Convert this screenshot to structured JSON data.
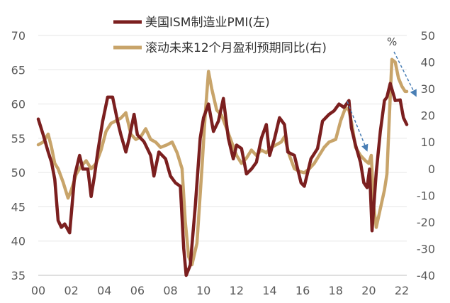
{
  "chart_data": {
    "type": "line",
    "title": "",
    "x_ticks": [
      "00",
      "02",
      "04",
      "06",
      "08",
      "10",
      "12",
      "14",
      "16",
      "18",
      "20",
      "22"
    ],
    "x_range": [
      2000,
      2022.3
    ],
    "y_left": {
      "ticks": [
        "70",
        "65",
        "60",
        "55",
        "50",
        "45",
        "40",
        "35"
      ],
      "range": [
        35,
        70
      ]
    },
    "y_right": {
      "ticks": [
        "50",
        "40",
        "30",
        "20",
        "10",
        "0",
        "-10",
        "-20",
        "-30",
        "-40"
      ],
      "range": [
        -40,
        50
      ]
    },
    "grid": "horizontal",
    "legend_position": "top",
    "annotation": "%",
    "series": [
      {
        "name": "美国ISM制造业PMI(左)",
        "axis": "left",
        "color": "#7b1f1f",
        "points": [
          [
            2000.0,
            57.8
          ],
          [
            2000.3,
            55.5
          ],
          [
            2000.6,
            53.0
          ],
          [
            2000.8,
            51.5
          ],
          [
            2001.0,
            49.0
          ],
          [
            2001.2,
            43.0
          ],
          [
            2001.4,
            42.0
          ],
          [
            2001.6,
            42.5
          ],
          [
            2001.9,
            41.2
          ],
          [
            2002.2,
            49.5
          ],
          [
            2002.5,
            52.5
          ],
          [
            2002.7,
            50.5
          ],
          [
            2003.0,
            50.5
          ],
          [
            2003.2,
            46.5
          ],
          [
            2003.4,
            49.5
          ],
          [
            2003.6,
            53.0
          ],
          [
            2003.9,
            57.5
          ],
          [
            2004.2,
            61.0
          ],
          [
            2004.5,
            61.0
          ],
          [
            2004.8,
            57.5
          ],
          [
            2005.0,
            55.5
          ],
          [
            2005.3,
            53.0
          ],
          [
            2005.5,
            55.0
          ],
          [
            2005.8,
            58.5
          ],
          [
            2006.0,
            55.5
          ],
          [
            2006.4,
            54.5
          ],
          [
            2006.8,
            52.5
          ],
          [
            2007.0,
            49.5
          ],
          [
            2007.3,
            53.0
          ],
          [
            2007.7,
            52.0
          ],
          [
            2008.0,
            49.5
          ],
          [
            2008.3,
            48.5
          ],
          [
            2008.6,
            48.0
          ],
          [
            2008.8,
            39.0
          ],
          [
            2008.95,
            35.0
          ],
          [
            2009.2,
            36.5
          ],
          [
            2009.5,
            45.0
          ],
          [
            2009.8,
            55.0
          ],
          [
            2010.0,
            58.0
          ],
          [
            2010.3,
            60.0
          ],
          [
            2010.6,
            56.0
          ],
          [
            2010.9,
            57.5
          ],
          [
            2011.2,
            60.8
          ],
          [
            2011.5,
            55.0
          ],
          [
            2011.8,
            52.0
          ],
          [
            2012.0,
            54.0
          ],
          [
            2012.3,
            53.5
          ],
          [
            2012.6,
            49.8
          ],
          [
            2012.9,
            50.5
          ],
          [
            2013.2,
            51.5
          ],
          [
            2013.5,
            55.0
          ],
          [
            2013.8,
            57.0
          ],
          [
            2014.0,
            52.5
          ],
          [
            2014.3,
            55.0
          ],
          [
            2014.6,
            58.0
          ],
          [
            2014.9,
            57.0
          ],
          [
            2015.1,
            53.0
          ],
          [
            2015.5,
            52.5
          ],
          [
            2015.9,
            48.5
          ],
          [
            2016.1,
            48.0
          ],
          [
            2016.5,
            52.0
          ],
          [
            2016.9,
            53.5
          ],
          [
            2017.2,
            57.5
          ],
          [
            2017.6,
            58.5
          ],
          [
            2017.9,
            59.0
          ],
          [
            2018.2,
            60.0
          ],
          [
            2018.5,
            59.5
          ],
          [
            2018.8,
            60.5
          ],
          [
            2018.95,
            56.5
          ],
          [
            2019.2,
            54.0
          ],
          [
            2019.5,
            51.5
          ],
          [
            2019.7,
            48.5
          ],
          [
            2019.9,
            47.8
          ],
          [
            2020.05,
            50.5
          ],
          [
            2020.2,
            41.5
          ],
          [
            2020.45,
            50.0
          ],
          [
            2020.7,
            56.0
          ],
          [
            2020.95,
            60.5
          ],
          [
            2021.1,
            61.0
          ],
          [
            2021.3,
            63.0
          ],
          [
            2021.6,
            60.5
          ],
          [
            2021.9,
            60.6
          ],
          [
            2022.1,
            58.0
          ],
          [
            2022.3,
            57.0
          ]
        ]
      },
      {
        "name": "滚动未来12个月盈利预期同比(右)",
        "axis": "right",
        "color": "#c8a46a",
        "points": [
          [
            2000.0,
            9.0
          ],
          [
            2000.3,
            10.0
          ],
          [
            2000.6,
            13.0
          ],
          [
            2000.8,
            8.0
          ],
          [
            2001.0,
            2.0
          ],
          [
            2001.2,
            0.0
          ],
          [
            2001.5,
            -5.0
          ],
          [
            2001.8,
            -11.0
          ],
          [
            2002.0,
            -8.0
          ],
          [
            2002.3,
            -2.0
          ],
          [
            2002.6,
            1.0
          ],
          [
            2002.9,
            3.0
          ],
          [
            2003.2,
            0.0
          ],
          [
            2003.5,
            2.0
          ],
          [
            2003.8,
            7.0
          ],
          [
            2004.1,
            14.0
          ],
          [
            2004.4,
            17.0
          ],
          [
            2004.7,
            18.0
          ],
          [
            2005.0,
            19.0
          ],
          [
            2005.3,
            21.0
          ],
          [
            2005.6,
            13.0
          ],
          [
            2005.9,
            11.0
          ],
          [
            2006.2,
            12.0
          ],
          [
            2006.5,
            15.0
          ],
          [
            2006.8,
            11.0
          ],
          [
            2007.1,
            10.0
          ],
          [
            2007.4,
            8.0
          ],
          [
            2007.8,
            9.0
          ],
          [
            2008.1,
            10.0
          ],
          [
            2008.4,
            6.0
          ],
          [
            2008.7,
            0.0
          ],
          [
            2008.9,
            -20.0
          ],
          [
            2009.1,
            -33.0
          ],
          [
            2009.3,
            -36.0
          ],
          [
            2009.6,
            -28.0
          ],
          [
            2009.9,
            0.0
          ],
          [
            2010.1,
            20.0
          ],
          [
            2010.3,
            36.5
          ],
          [
            2010.5,
            30.0
          ],
          [
            2010.8,
            22.0
          ],
          [
            2011.1,
            20.0
          ],
          [
            2011.4,
            15.0
          ],
          [
            2011.7,
            10.0
          ],
          [
            2012.0,
            5.0
          ],
          [
            2012.3,
            2.0
          ],
          [
            2012.6,
            4.0
          ],
          [
            2012.9,
            7.0
          ],
          [
            2013.2,
            5.0
          ],
          [
            2013.5,
            7.0
          ],
          [
            2013.8,
            6.0
          ],
          [
            2014.1,
            8.0
          ],
          [
            2014.4,
            9.0
          ],
          [
            2014.7,
            10.0
          ],
          [
            2014.9,
            12.0
          ],
          [
            2015.2,
            5.0
          ],
          [
            2015.5,
            0.0
          ],
          [
            2015.8,
            -1.0
          ],
          [
            2016.1,
            -1.5
          ],
          [
            2016.4,
            0.0
          ],
          [
            2016.7,
            2.0
          ],
          [
            2017.0,
            5.0
          ],
          [
            2017.3,
            8.0
          ],
          [
            2017.6,
            10.0
          ],
          [
            2018.0,
            11.0
          ],
          [
            2018.3,
            18.0
          ],
          [
            2018.6,
            23.0
          ],
          [
            2018.8,
            22.0
          ],
          [
            2019.0,
            16.0
          ],
          [
            2019.2,
            8.0
          ],
          [
            2019.5,
            5.0
          ],
          [
            2019.8,
            3.0
          ],
          [
            2020.0,
            2.0
          ],
          [
            2020.15,
            5.0
          ],
          [
            2020.3,
            -14.0
          ],
          [
            2020.45,
            -22.0
          ],
          [
            2020.7,
            -15.0
          ],
          [
            2020.95,
            -8.0
          ],
          [
            2021.1,
            -2.0
          ],
          [
            2021.25,
            20.0
          ],
          [
            2021.4,
            41.0
          ],
          [
            2021.6,
            40.0
          ],
          [
            2021.8,
            34.0
          ],
          [
            2022.0,
            31.0
          ],
          [
            2022.2,
            29.0
          ],
          [
            2022.3,
            29.0
          ]
        ]
      }
    ]
  }
}
